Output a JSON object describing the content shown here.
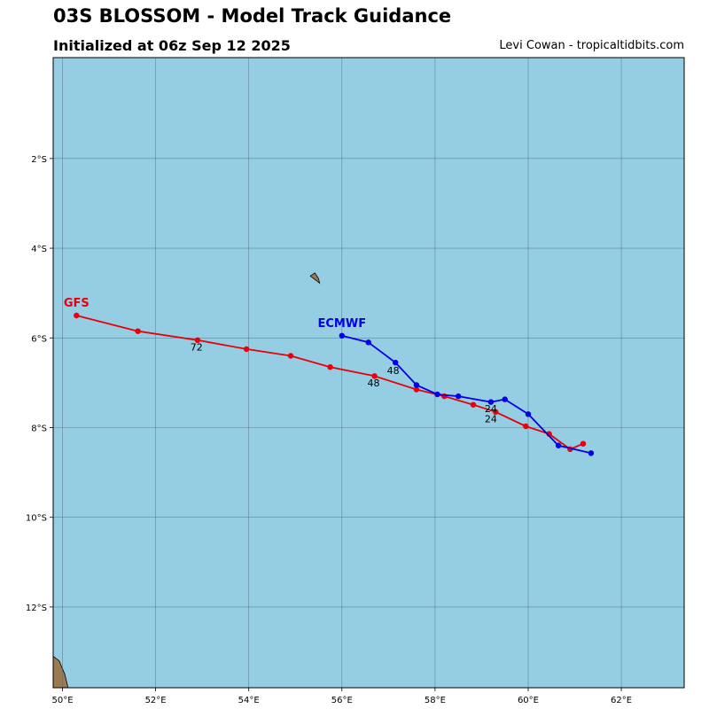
{
  "title": "03S BLOSSOM - Model Track Guidance",
  "subtitle": "Initialized at 06z Sep 12 2025",
  "credit": "Levi Cowan - tropicaltidbits.com",
  "colors": {
    "ocean": "#95cde3",
    "land": "#9b7a50",
    "grid": "#4a6b76",
    "gfs": "#e8000b",
    "ecmwf": "#0000e6"
  },
  "map": {
    "lon_range": [
      49.8,
      63.35
    ],
    "lat_range": [
      -13.8,
      0.25
    ],
    "lon_ticks": [
      {
        "value": 50,
        "label": "50°E"
      },
      {
        "value": 52,
        "label": "52°E"
      },
      {
        "value": 54,
        "label": "54°E"
      },
      {
        "value": 56,
        "label": "56°E"
      },
      {
        "value": 58,
        "label": "58°E"
      },
      {
        "value": 60,
        "label": "60°E"
      },
      {
        "value": 62,
        "label": "62°E"
      }
    ],
    "lat_ticks": [
      {
        "value": -2,
        "label": "2°S"
      },
      {
        "value": -4,
        "label": "4°S"
      },
      {
        "value": -6,
        "label": "6°S"
      },
      {
        "value": -8,
        "label": "8°S"
      },
      {
        "value": -10,
        "label": "10°S"
      },
      {
        "value": -12,
        "label": "12°S"
      }
    ],
    "land": [
      {
        "name": "island",
        "points": [
          [
            55.32,
            -4.62
          ],
          [
            55.42,
            -4.55
          ],
          [
            55.5,
            -4.68
          ],
          [
            55.52,
            -4.78
          ],
          [
            55.45,
            -4.72
          ]
        ]
      },
      {
        "name": "madagascar-coast",
        "points": [
          [
            49.8,
            -13.1
          ],
          [
            49.93,
            -13.2
          ],
          [
            50.05,
            -13.5
          ],
          [
            50.12,
            -13.8
          ],
          [
            49.8,
            -13.8
          ]
        ]
      }
    ]
  },
  "chart_data": {
    "type": "map-track",
    "series": [
      {
        "name": "GFS",
        "color": "#e8000b",
        "points": [
          [
            61.18,
            -8.36
          ],
          [
            60.9,
            -8.48
          ],
          [
            60.45,
            -8.14
          ],
          [
            59.95,
            -7.97
          ],
          [
            59.3,
            -7.65
          ],
          [
            58.82,
            -7.49
          ],
          [
            58.2,
            -7.3
          ],
          [
            57.6,
            -7.15
          ],
          [
            56.7,
            -6.85
          ],
          [
            55.75,
            -6.65
          ],
          [
            54.9,
            -6.4
          ],
          [
            53.95,
            -6.25
          ],
          [
            52.9,
            -6.05
          ],
          [
            51.62,
            -5.85
          ],
          [
            50.3,
            -5.5
          ]
        ],
        "hour_labels": [
          {
            "label": "24",
            "lon": 59.2,
            "lat": -7.88
          },
          {
            "label": "48",
            "lon": 56.68,
            "lat": -7.08
          },
          {
            "label": "72",
            "lon": 52.88,
            "lat": -6.28
          }
        ]
      },
      {
        "name": "ECMWF",
        "color": "#0000e6",
        "points": [
          [
            61.35,
            -8.57
          ],
          [
            60.65,
            -8.4
          ],
          [
            60.0,
            -7.7
          ],
          [
            59.5,
            -7.37
          ],
          [
            59.2,
            -7.43
          ],
          [
            58.5,
            -7.3
          ],
          [
            58.05,
            -7.26
          ],
          [
            57.6,
            -7.05
          ],
          [
            57.15,
            -6.55
          ],
          [
            56.57,
            -6.1
          ],
          [
            56.0,
            -5.95
          ]
        ],
        "hour_labels": [
          {
            "label": "24",
            "lon": 59.2,
            "lat": -7.65
          },
          {
            "label": "48",
            "lon": 57.1,
            "lat": -6.8
          }
        ]
      }
    ]
  }
}
